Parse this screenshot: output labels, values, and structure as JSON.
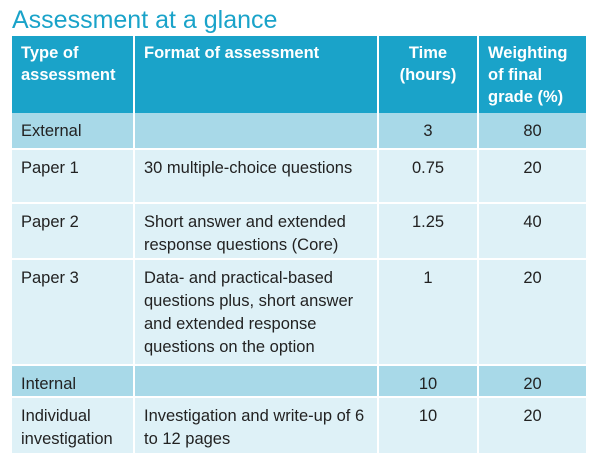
{
  "title": "Assessment at a glance",
  "table": {
    "headers": {
      "type": "Type of assessment",
      "format": "Format of assessment",
      "time": "Time (hours)",
      "weighting": "Weighting of final grade (%)"
    },
    "rows": [
      {
        "type": "External",
        "format": "",
        "time": "3",
        "weighting": "80"
      },
      {
        "type": "Paper 1",
        "format": "30 multiple-choice questions",
        "time": "0.75",
        "weighting": "20"
      },
      {
        "type": "Paper 2",
        "format": "Short answer and extended response questions (Core)",
        "time": "1.25",
        "weighting": "40"
      },
      {
        "type": "Paper 3",
        "format": "Data- and practical-based questions plus, short answer and extended response questions on the option",
        "time": "1",
        "weighting": "20"
      },
      {
        "type": "Internal",
        "format": "",
        "time": "10",
        "weighting": "20"
      },
      {
        "type": "Individual investigation",
        "format": "Investigation and write-up of 6 to 12 pages",
        "time": "10",
        "weighting": "20"
      }
    ]
  },
  "colors": {
    "accent": "#1aa3c9",
    "group_row": "#a8d9e8",
    "item_row": "#def1f7"
  }
}
